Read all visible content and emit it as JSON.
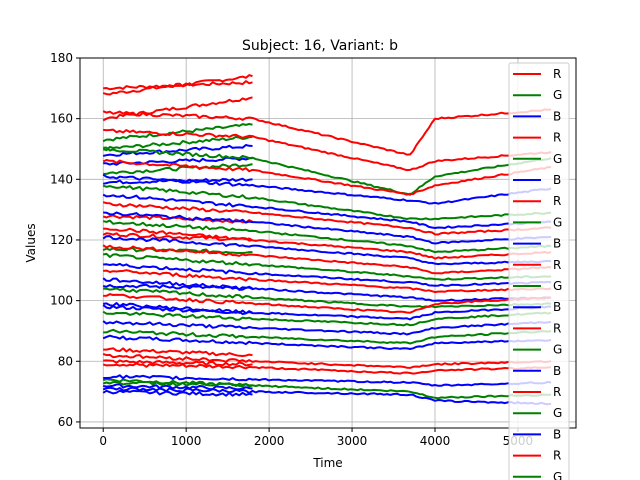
{
  "chart_data": {
    "type": "line",
    "title": "Subject: 16, Variant: b",
    "xlabel": "Time",
    "ylabel": "Values",
    "xlim": [
      -280,
      5700
    ],
    "ylim": [
      58,
      180
    ],
    "xticks": [
      0,
      1000,
      2000,
      3000,
      4000,
      5000
    ],
    "yticks": [
      60,
      80,
      100,
      120,
      140,
      160,
      180
    ],
    "grid": true,
    "legend_position": "upper right, extends below axes",
    "legend_entries": [
      "R",
      "G",
      "B",
      "R",
      "G",
      "B",
      "R",
      "G",
      "B",
      "R",
      "G",
      "B",
      "R",
      "G",
      "B",
      "R",
      "G",
      "B",
      "R",
      "G"
    ],
    "series_colors": {
      "R": "#ff0000",
      "G": "#008000",
      "B": "#0000ff"
    },
    "series": [
      {
        "name": "R",
        "segment": "early",
        "x": [
          0,
          1800
        ],
        "y": [
          170,
          172
        ]
      },
      {
        "name": "R",
        "segment": "early",
        "x": [
          0,
          1800
        ],
        "y": [
          168,
          174
        ]
      },
      {
        "name": "R",
        "segment": "early",
        "x": [
          0,
          1800
        ],
        "y": [
          160,
          167
        ]
      },
      {
        "name": "G",
        "segment": "early",
        "x": [
          0,
          1800
        ],
        "y": [
          153,
          158
        ]
      },
      {
        "name": "G",
        "segment": "early",
        "x": [
          0,
          1800
        ],
        "y": [
          150,
          154
        ]
      },
      {
        "name": "B",
        "segment": "early",
        "x": [
          0,
          1800
        ],
        "y": [
          148,
          151
        ]
      },
      {
        "name": "B",
        "segment": "early",
        "x": [
          0,
          1800
        ],
        "y": [
          145,
          147
        ]
      },
      {
        "name": "G",
        "segment": "early",
        "x": [
          0,
          1800
        ],
        "y": [
          142,
          145
        ]
      },
      {
        "name": "B",
        "segment": "early",
        "x": [
          0,
          1800
        ],
        "y": [
          139,
          140
        ]
      },
      {
        "name": "R",
        "segment": "early",
        "x": [
          0,
          1800
        ],
        "y": [
          128,
          126
        ]
      },
      {
        "name": "R",
        "segment": "early",
        "x": [
          0,
          1800
        ],
        "y": [
          122,
          120
        ]
      },
      {
        "name": "G",
        "segment": "early",
        "x": [
          0,
          1800
        ],
        "y": [
          117,
          116
        ]
      },
      {
        "name": "B",
        "segment": "early",
        "x": [
          0,
          1800
        ],
        "y": [
          105,
          104
        ]
      },
      {
        "name": "B",
        "segment": "early",
        "x": [
          0,
          1800
        ],
        "y": [
          98,
          96
        ]
      },
      {
        "name": "R",
        "segment": "early",
        "x": [
          0,
          1800
        ],
        "y": [
          84,
          82
        ]
      },
      {
        "name": "R",
        "segment": "early",
        "x": [
          0,
          1800
        ],
        "y": [
          80,
          79
        ]
      },
      {
        "name": "G",
        "segment": "early",
        "x": [
          0,
          1800
        ],
        "y": [
          74,
          72
        ]
      },
      {
        "name": "B",
        "segment": "early",
        "x": [
          0,
          1800
        ],
        "y": [
          72,
          71
        ]
      },
      {
        "name": "B",
        "segment": "early",
        "x": [
          0,
          1800
        ],
        "y": [
          70,
          69
        ]
      },
      {
        "name": "R",
        "x": [
          0,
          1800,
          3700,
          4000,
          5400
        ],
        "y": [
          162,
          160,
          148,
          160,
          163
        ]
      },
      {
        "name": "R",
        "x": [
          0,
          1800,
          3700,
          4000,
          5400
        ],
        "y": [
          156,
          154,
          143,
          146,
          149
        ]
      },
      {
        "name": "G",
        "x": [
          0,
          1800,
          3700,
          4000,
          5400
        ],
        "y": [
          150,
          147,
          135,
          141,
          147
        ]
      },
      {
        "name": "R",
        "x": [
          0,
          1800,
          3700,
          4000,
          5400
        ],
        "y": [
          146,
          143,
          135,
          138,
          144
        ]
      },
      {
        "name": "B",
        "x": [
          0,
          1800,
          3700,
          4000,
          5400
        ],
        "y": [
          141,
          138,
          133,
          132,
          137
        ]
      },
      {
        "name": "G",
        "x": [
          0,
          1800,
          3700,
          4000,
          5400
        ],
        "y": [
          138,
          134,
          127,
          127,
          129
        ]
      },
      {
        "name": "B",
        "x": [
          0,
          1800,
          3700,
          4000,
          5400
        ],
        "y": [
          135,
          131,
          126,
          124,
          126
        ]
      },
      {
        "name": "R",
        "x": [
          0,
          1800,
          3700,
          4000,
          5400
        ],
        "y": [
          132,
          129,
          124,
          122,
          124
        ]
      },
      {
        "name": "B",
        "x": [
          0,
          1800,
          3700,
          4000,
          5400
        ],
        "y": [
          129,
          126,
          121,
          119,
          121
        ]
      },
      {
        "name": "G",
        "x": [
          0,
          1800,
          3700,
          4000,
          5400
        ],
        "y": [
          126,
          123,
          118,
          116,
          118
        ]
      },
      {
        "name": "R",
        "x": [
          0,
          1800,
          3700,
          4000,
          5400
        ],
        "y": [
          124,
          120,
          116,
          114,
          116
        ]
      },
      {
        "name": "B",
        "x": [
          0,
          1800,
          3700,
          4000,
          5400
        ],
        "y": [
          121,
          118,
          114,
          112,
          113
        ]
      },
      {
        "name": "R",
        "x": [
          0,
          1800,
          3700,
          4000,
          5400
        ],
        "y": [
          118,
          115,
          111,
          109,
          111
        ]
      },
      {
        "name": "G",
        "x": [
          0,
          1800,
          3700,
          4000,
          5400
        ],
        "y": [
          115,
          112,
          108,
          107,
          108
        ]
      },
      {
        "name": "B",
        "x": [
          0,
          1800,
          3700,
          4000,
          5400
        ],
        "y": [
          112,
          109,
          106,
          105,
          106
        ]
      },
      {
        "name": "R",
        "x": [
          0,
          1800,
          3700,
          4000,
          5400
        ],
        "y": [
          110,
          107,
          104,
          103,
          104
        ]
      },
      {
        "name": "B",
        "x": [
          0,
          1800,
          3700,
          4000,
          5400
        ],
        "y": [
          107,
          104,
          101,
          100,
          101
        ]
      },
      {
        "name": "G",
        "x": [
          0,
          1800,
          3700,
          4000,
          5400
        ],
        "y": [
          104,
          101,
          98,
          98,
          99
        ]
      },
      {
        "name": "R",
        "x": [
          0,
          1800,
          3700,
          4000,
          5400
        ],
        "y": [
          102,
          99,
          96,
          99,
          101
        ]
      },
      {
        "name": "B",
        "x": [
          0,
          1800,
          3700,
          4000,
          5400
        ],
        "y": [
          99,
          96,
          94,
          96,
          98
        ]
      },
      {
        "name": "G",
        "x": [
          0,
          1800,
          3700,
          4000,
          5400
        ],
        "y": [
          96,
          94,
          92,
          94,
          96
        ]
      },
      {
        "name": "B",
        "x": [
          0,
          1800,
          3700,
          4000,
          5400
        ],
        "y": [
          93,
          91,
          89,
          91,
          93
        ]
      },
      {
        "name": "G",
        "x": [
          0,
          1800,
          3700,
          4000,
          5400
        ],
        "y": [
          90,
          88,
          86,
          88,
          90
        ]
      },
      {
        "name": "B",
        "x": [
          0,
          1800,
          3700,
          4000,
          5400
        ],
        "y": [
          88,
          86,
          84,
          86,
          87
        ]
      },
      {
        "name": "R",
        "x": [
          0,
          1800,
          3700,
          4000,
          5400
        ],
        "y": [
          82,
          80,
          78,
          79,
          80
        ]
      },
      {
        "name": "R",
        "x": [
          0,
          1800,
          3700,
          4000,
          5400
        ],
        "y": [
          79,
          78,
          76,
          77,
          78
        ]
      },
      {
        "name": "B",
        "x": [
          0,
          1800,
          3700,
          4000,
          5400
        ],
        "y": [
          75,
          74,
          73,
          72,
          73
        ]
      },
      {
        "name": "G",
        "x": [
          0,
          1800,
          3700,
          4000,
          5400
        ],
        "y": [
          73,
          72,
          70,
          68,
          69
        ]
      },
      {
        "name": "B",
        "x": [
          0,
          1800,
          3700,
          4000,
          5400
        ],
        "y": [
          71,
          70,
          69,
          67,
          66
        ]
      }
    ]
  }
}
